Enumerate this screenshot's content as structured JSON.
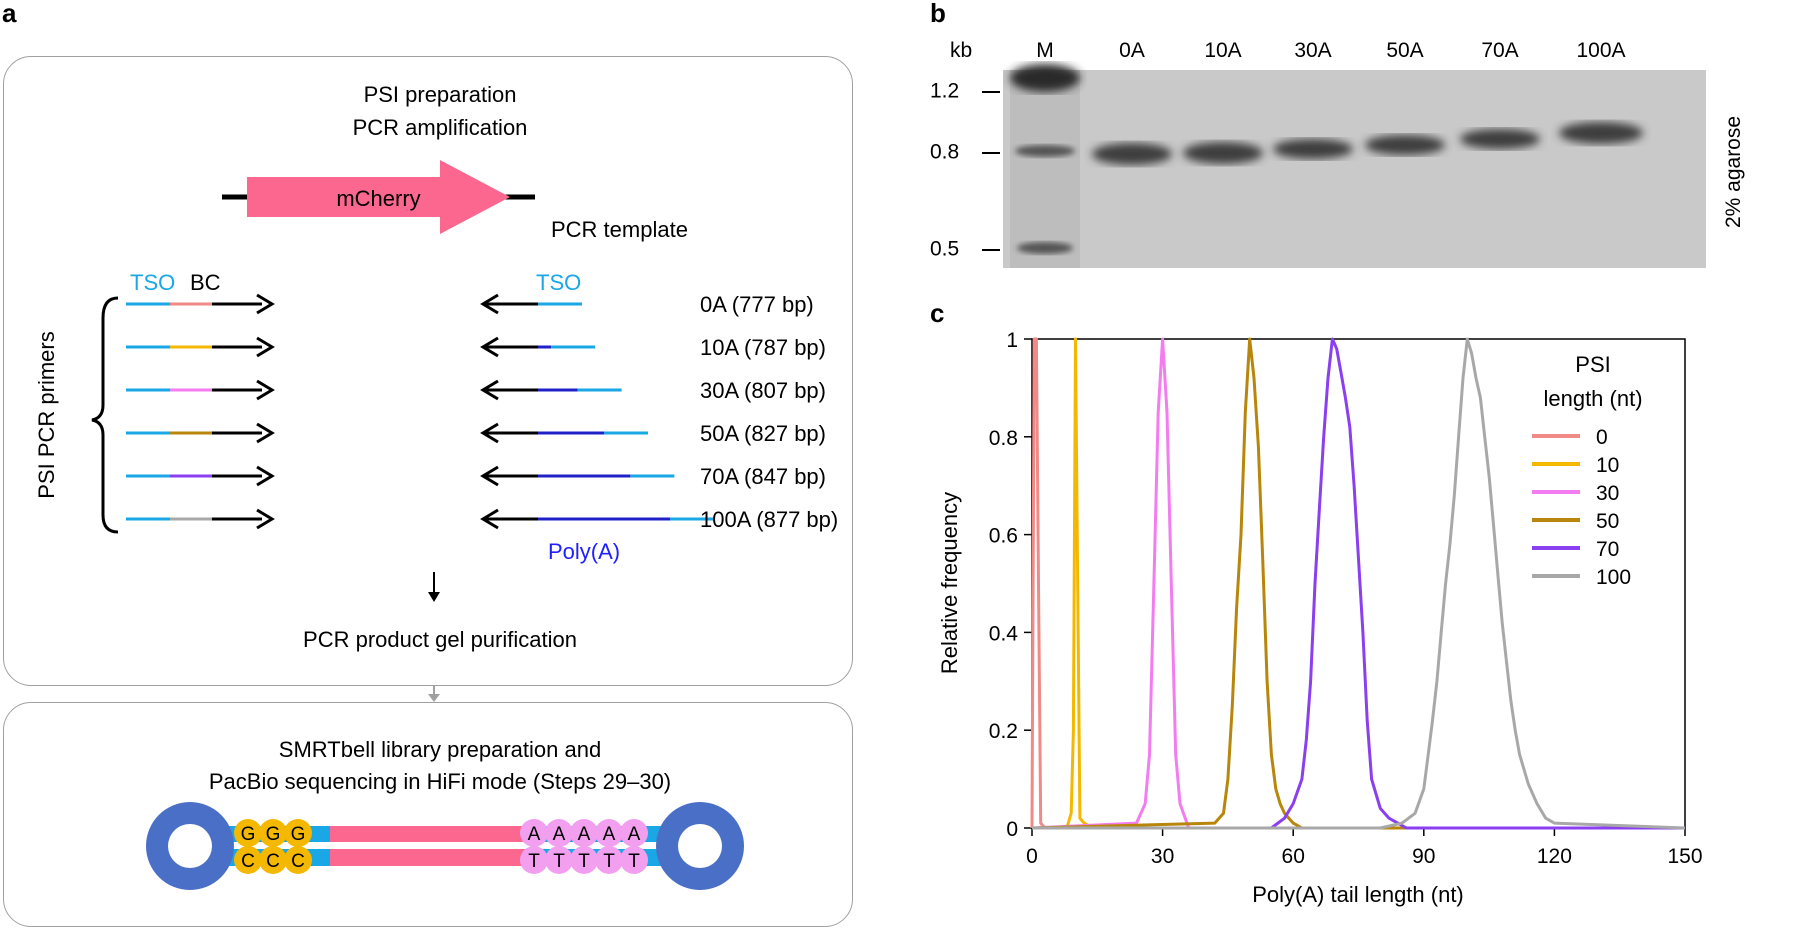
{
  "panel_a": {
    "letter": "a",
    "top_box": {
      "title_line1": "PSI preparation",
      "title_line2": "PCR amplification",
      "mcherry_label": "mCherry",
      "template_label": "PCR template",
      "tso_left": "TSO",
      "bc_label": "BC",
      "tso_right": "TSO",
      "primers_label": "PSI PCR primers",
      "polya_label": "Poly(A)",
      "bottom_text": "PCR product gel purification",
      "rows": [
        {
          "label": "0A (777 bp)",
          "bc_color": "#f08a86",
          "polya_len": 0
        },
        {
          "label": "10A (787 bp)",
          "bc_color": "#f5b800",
          "polya_len": 10
        },
        {
          "label": "30A (807 bp)",
          "bc_color": "#f27cf0",
          "polya_len": 30
        },
        {
          "label": "50A (827 bp)",
          "bc_color": "#b8860b",
          "polya_len": 50
        },
        {
          "label": "70A (847 bp)",
          "bc_color": "#8a3ff0",
          "polya_len": 70
        },
        {
          "label": "100A (877 bp)",
          "bc_color": "#a8a8a8",
          "polya_len": 100
        }
      ]
    },
    "bottom_box": {
      "title_line1": "SMRTbell library preparation and",
      "title_line2": "PacBio sequencing in HiFi mode (Steps 29–30)",
      "top_g": [
        "G",
        "G",
        "G"
      ],
      "bottom_c": [
        "C",
        "C",
        "C"
      ],
      "top_a": [
        "A",
        "A",
        "A",
        "A",
        "A"
      ],
      "bottom_t": [
        "T",
        "T",
        "T",
        "T",
        "T"
      ]
    }
  },
  "panel_b": {
    "letter": "b",
    "kb_label": "kb",
    "lanes": [
      "M",
      "0A",
      "10A",
      "30A",
      "50A",
      "70A",
      "100A"
    ],
    "ticks": [
      "1.2",
      "0.8",
      "0.5"
    ],
    "side_label": "2% agarose"
  },
  "panel_c": {
    "letter": "c",
    "chart_data": {
      "type": "line",
      "title": "",
      "xlabel": "Poly(A) tail length (nt)",
      "ylabel": "Relative frequency",
      "xlim": [
        0,
        150
      ],
      "ylim": [
        0,
        1
      ],
      "xticks": [
        0,
        30,
        60,
        90,
        120,
        150
      ],
      "yticks": [
        0,
        0.2,
        0.4,
        0.6,
        0.8,
        1
      ],
      "ytick_labels": [
        "0",
        "0.2",
        "0.4",
        "0.6",
        "0.8",
        "1"
      ],
      "legend_title_line1": "PSI",
      "legend_title_line2": "length (nt)",
      "series": [
        {
          "name": "0",
          "color": "#f08a86",
          "x": [
            0,
            0.5,
            1,
            1.5,
            2,
            3,
            150
          ],
          "y": [
            0,
            1,
            1,
            0.5,
            0.01,
            0,
            0
          ]
        },
        {
          "name": "10",
          "color": "#f5b800",
          "x": [
            0,
            8,
            9,
            9.5,
            10,
            10.5,
            11,
            12,
            14,
            150
          ],
          "y": [
            0,
            0,
            0.03,
            0.2,
            1,
            0.5,
            0.02,
            0.01,
            0,
            0
          ]
        },
        {
          "name": "30",
          "color": "#f27cf0",
          "x": [
            0,
            24,
            26,
            27,
            28,
            29,
            30,
            31,
            32,
            33,
            34,
            36,
            150
          ],
          "y": [
            0,
            0.01,
            0.05,
            0.15,
            0.5,
            0.85,
            1,
            0.85,
            0.5,
            0.15,
            0.05,
            0,
            0
          ]
        },
        {
          "name": "50",
          "color": "#b8860b",
          "x": [
            0,
            42,
            44,
            45,
            46,
            47,
            48,
            49,
            50,
            51,
            52,
            53,
            54,
            55,
            56,
            57,
            58,
            60,
            62,
            150
          ],
          "y": [
            0,
            0.01,
            0.03,
            0.1,
            0.25,
            0.45,
            0.6,
            0.85,
            1,
            0.92,
            0.78,
            0.55,
            0.3,
            0.15,
            0.08,
            0.05,
            0.03,
            0.01,
            0,
            0
          ]
        },
        {
          "name": "70",
          "color": "#8a3ff0",
          "x": [
            0,
            55,
            58,
            60,
            62,
            63,
            64,
            65,
            66,
            67,
            68,
            69,
            70,
            71,
            72,
            73,
            74,
            75,
            76,
            77,
            78,
            80,
            82,
            84,
            86,
            150
          ],
          "y": [
            0,
            0,
            0.02,
            0.05,
            0.1,
            0.18,
            0.3,
            0.5,
            0.65,
            0.8,
            0.92,
            1,
            0.98,
            0.93,
            0.88,
            0.82,
            0.7,
            0.55,
            0.4,
            0.22,
            0.1,
            0.04,
            0.02,
            0.01,
            0,
            0
          ]
        },
        {
          "name": "100",
          "color": "#a8a8a8",
          "x": [
            0,
            80,
            85,
            88,
            90,
            91,
            92,
            93,
            94,
            95,
            96,
            97,
            98,
            99,
            100,
            101,
            102,
            103,
            104,
            105,
            106,
            107,
            108,
            109,
            110,
            111,
            112,
            114,
            116,
            118,
            120,
            150
          ],
          "y": [
            0,
            0,
            0.01,
            0.03,
            0.08,
            0.15,
            0.22,
            0.3,
            0.4,
            0.5,
            0.58,
            0.68,
            0.8,
            0.92,
            1,
            0.97,
            0.92,
            0.88,
            0.8,
            0.72,
            0.62,
            0.52,
            0.42,
            0.34,
            0.26,
            0.2,
            0.15,
            0.09,
            0.05,
            0.02,
            0.01,
            0
          ]
        }
      ]
    }
  }
}
